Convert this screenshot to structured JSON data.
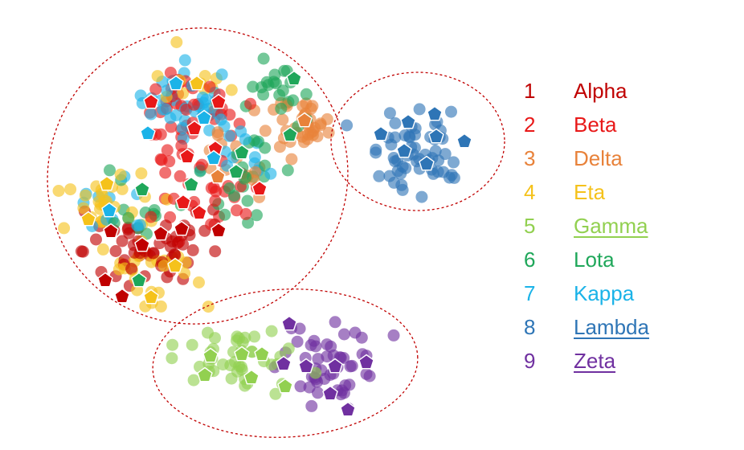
{
  "chart_data": {
    "type": "scatter",
    "title": "",
    "xlabel": "",
    "ylabel": "",
    "axes_visible": false,
    "grid": false,
    "legend_placement": "right",
    "series": [
      {
        "id": "1",
        "name": "Alpha",
        "color": "#C00000",
        "underlined": false
      },
      {
        "id": "2",
        "name": "Beta",
        "color": "#E81818",
        "underlined": false
      },
      {
        "id": "3",
        "name": "Delta",
        "color": "#E8823A",
        "underlined": false
      },
      {
        "id": "4",
        "name": "Eta",
        "color": "#F5C21B",
        "underlined": false
      },
      {
        "id": "5",
        "name": "Gamma",
        "color": "#92D050",
        "underlined": true
      },
      {
        "id": "6",
        "name": "Lota",
        "color": "#1FA75A",
        "underlined": false
      },
      {
        "id": "7",
        "name": "Kappa",
        "color": "#1BB3E8",
        "underlined": false
      },
      {
        "id": "8",
        "name": "Lambda",
        "color": "#2E75B6",
        "underlined": true
      },
      {
        "id": "9",
        "name": "Zeta",
        "color": "#7030A0",
        "underlined": true
      }
    ],
    "clusters": [
      {
        "members": [
          "1",
          "2",
          "3",
          "4",
          "6",
          "7"
        ],
        "outline_color": "#C00000",
        "outline_style": "dashed"
      },
      {
        "members": [
          "8"
        ],
        "outline_color": "#C00000",
        "outline_style": "dashed"
      },
      {
        "members": [
          "5",
          "9"
        ],
        "outline_color": "#C00000",
        "outline_style": "dashed"
      }
    ],
    "marker_shapes": {
      "point": "circle",
      "centroid": "pentagon"
    }
  }
}
